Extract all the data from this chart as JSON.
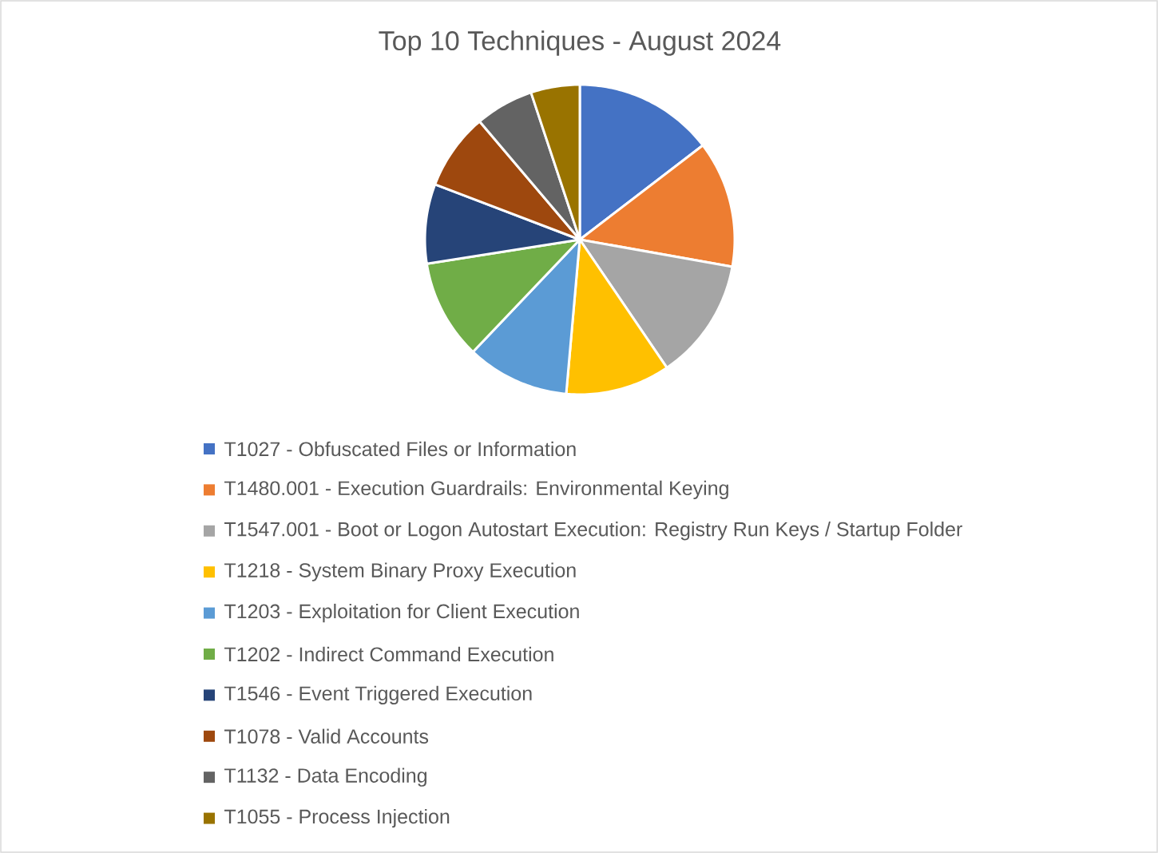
{
  "chart_data": {
    "type": "pie",
    "title": "Top 10 Techniques - August 2024",
    "categories": [
      "T1027 - Obfuscated Files or Information",
      "T1480.001 - Execution Guardrails: Environmental Keying",
      "T1547.001 - Boot or Logon Autostart Execution: Registry Run Keys / Startup Folder",
      "T1218 - System Binary Proxy Execution",
      "T1203 - Exploitation for Client Execution",
      "T1202 - Indirect Command Execution",
      "T1546 - Event Triggered Execution",
      "T1078 - Valid Accounts",
      "T1132 - Data Encoding",
      "T1055 - Process Injection"
    ],
    "values": [
      14.6,
      13.2,
      12.7,
      10.9,
      10.7,
      10.4,
      8.3,
      8.0,
      6.1,
      5.1
    ],
    "colors": [
      "#4472c4",
      "#ed7d31",
      "#a5a5a5",
      "#ffc000",
      "#5b9bd5",
      "#70ad47",
      "#264478",
      "#9e480e",
      "#636363",
      "#997300"
    ],
    "legend": "bottom"
  }
}
